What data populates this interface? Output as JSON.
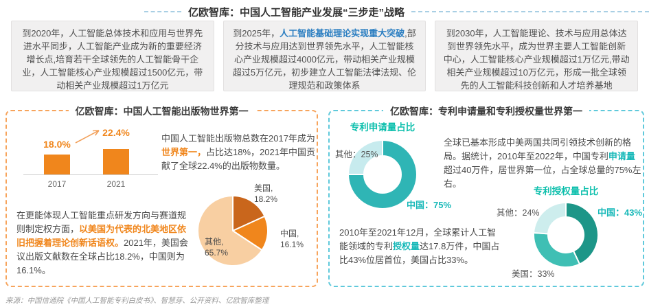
{
  "header": {
    "title": "亿欧智库：中国人工智能产业发展“三步走”战略"
  },
  "strategy_boxes": [
    {
      "pre": "到2020年，人工智能总体技术和应用与世界先进水平同步，人工智能产业成为新的重要经济增长点,培育若干全球领先的人工智能骨干企业，人工智能核心产业规模超过1500亿元，带动相关产业规模超过1万亿元",
      "highlight": "",
      "post": ""
    },
    {
      "pre": "到2025年，",
      "highlight": "人工智能基础理论实现重大突破",
      "post": ",部分技术与应用达到世界领先水平，人工智能核心产业规模超过4000亿元，带动相关产业规模超过5万亿元，初步建立人工智能法律法规、伦理规范和政策体系"
    },
    {
      "pre": "到2030年，人工智能理论、技术与应用总体达到世界领先水平，成为世界主要人工智能创新中心，人工智能核心产业规模超过1万亿元,带动相关产业规模超过10万亿元，形成一批全球领先的人工智能科技创新和人才培养基地",
      "highlight": "",
      "post": ""
    }
  ],
  "left_panel": {
    "title": "亿欧智库：中国人工智能出版物世界第一",
    "para1": {
      "pre": "中国人工智能出版物总数在2017年成为",
      "highlight": "世界第一，",
      "post": "占比达18%，2021年中国贡献了全球22.4%的出版物数量。"
    },
    "para2": {
      "pre": "在更能体现人工智能重点研发方向与赛道规则制定权方面，",
      "highlight": "以美国为代表的北美地区依旧把握着理论创新话语权。",
      "post": "2021年，美国会议出版文献数在全球占比18.2%，中国则为16.1%。"
    },
    "pie_labels": [
      {
        "line1": "美国,",
        "line2": "18.2%"
      },
      {
        "line1": "中国,",
        "line2": "16.1%"
      },
      {
        "line1": "其他,",
        "line2": "65.7%"
      }
    ]
  },
  "right_panel": {
    "title": "亿欧智库：专利申请量和专利授权量世界第一",
    "donut1_title": "专利申请量占比",
    "donut2_title": "专利授权量占比",
    "donut1_labels": {
      "other": "其他：25%",
      "china": "中国：75%"
    },
    "donut2_labels": {
      "other": "其他：24%",
      "china": "中国：43%",
      "usa": "美国：33%"
    },
    "para1": {
      "pre": "全球已基本形成中美两国共同引领技术创新的格局。据统计，2010年至2022年，中国专利",
      "highlight": "申请量",
      "post": "超过40万件，居世界第一位，占全球总量的75%左右。"
    },
    "para2": {
      "pre": "2010年至2021年12月，全球累计人工智能领域的专利",
      "highlight": "授权量",
      "post": "达17.8万件，中国占比43%位居首位，美国占比33%。"
    }
  },
  "footer": {
    "source": "来源：中国信通院《中国人工智能专利白皮书》、智慧芽、公开资料、亿欧智库整理"
  },
  "colors": {
    "accent_orange": "#F0861C",
    "dark_orange": "#C9661C",
    "light_orange": "#F8CFA2",
    "teal": "#2FB5B5",
    "dark_teal": "#1D9688",
    "mid_teal": "#3FBFB4",
    "light_teal": "#CDEDED",
    "donut_light": "#C7EBEE",
    "chart_title_teal": "#0CBFAC",
    "highlight_blue": "#2B7EC1",
    "panel_left_border": "#F7A45C",
    "panel_right_border": "#5FC9DB",
    "header_dash": "#A9CFE4"
  },
  "chart_data": [
    {
      "id": "publications_bar",
      "type": "bar",
      "categories": [
        "2017",
        "2021"
      ],
      "values": [
        18.0,
        22.4
      ],
      "unit": "%",
      "display_labels": [
        "18.0%",
        "22.4%"
      ],
      "bar_color": "#F0861C"
    },
    {
      "id": "publications_pie",
      "type": "pie",
      "labels": [
        "美国",
        "中国",
        "其他"
      ],
      "values": [
        18.2,
        16.1,
        65.7
      ],
      "unit": "%",
      "colors": [
        "#C9661C",
        "#F0861C",
        "#F8CFA2"
      ],
      "start_angle": 0,
      "direction": "clockwise"
    },
    {
      "id": "patent_applications_donut",
      "type": "pie",
      "subtype": "donut",
      "title": "专利申请量占比",
      "labels": [
        "中国",
        "其他"
      ],
      "values": [
        75,
        25
      ],
      "unit": "%",
      "colors": [
        "#2FB5B5",
        "#C7EBEE"
      ],
      "start_angle": 0,
      "direction": "clockwise"
    },
    {
      "id": "patent_grants_donut",
      "type": "pie",
      "subtype": "donut",
      "title": "专利授权量占比",
      "labels": [
        "中国",
        "美国",
        "其他"
      ],
      "values": [
        43,
        33,
        24
      ],
      "unit": "%",
      "colors": [
        "#1D9688",
        "#3FBFB4",
        "#CDEDED"
      ],
      "start_angle": 0,
      "direction": "clockwise"
    }
  ]
}
